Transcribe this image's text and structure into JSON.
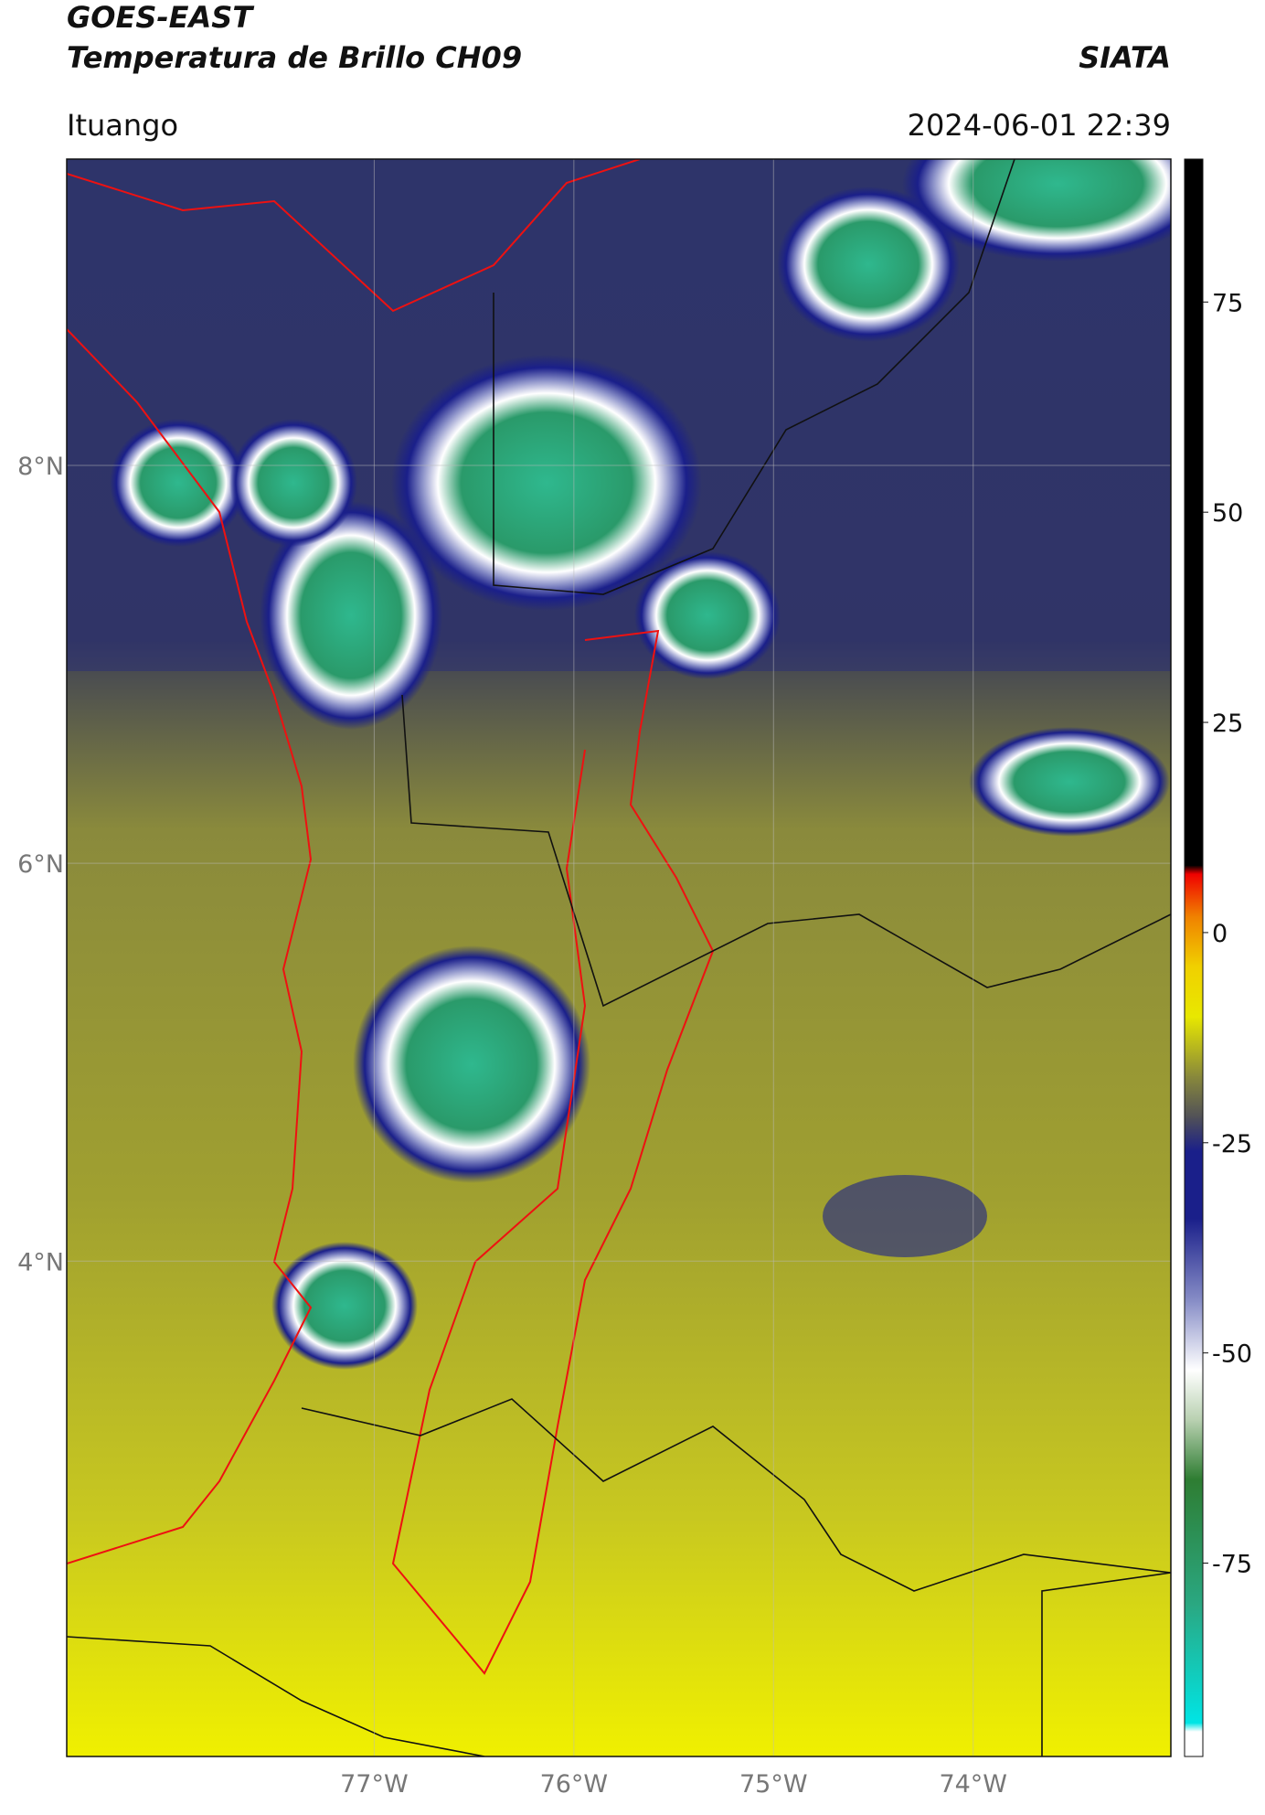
{
  "header": {
    "title": "GOES-EAST",
    "subtitle": "Temperatura de Brillo CH09",
    "source": "SIATA",
    "location": "Ituango",
    "datetime": "2024-06-01 22:39"
  },
  "map": {
    "lon_range": [
      -78.54,
      -73.01
    ],
    "lat_range": [
      1.51,
      9.54
    ],
    "lon_ticks": [
      {
        "value": -77,
        "label": "77°W"
      },
      {
        "value": -76,
        "label": "76°W"
      },
      {
        "value": -75,
        "label": "75°W"
      },
      {
        "value": -74,
        "label": "74°W"
      }
    ],
    "lat_ticks": [
      {
        "value": 8,
        "label": "8°N"
      },
      {
        "value": 6,
        "label": "6°N"
      },
      {
        "value": 4,
        "label": "4°N"
      }
    ]
  },
  "colorbar": {
    "range": [
      -98,
      92
    ],
    "ticks": [
      75,
      50,
      25,
      0,
      -25,
      -50,
      -75
    ],
    "stops": [
      {
        "value": -98,
        "color": "#ffffff"
      },
      {
        "value": -95,
        "color": "#ffffff"
      },
      {
        "value": -94,
        "color": "#00e5e5"
      },
      {
        "value": -80,
        "color": "#2aa882"
      },
      {
        "value": -65,
        "color": "#2e7d32"
      },
      {
        "value": -58,
        "color": "#b8d0b0"
      },
      {
        "value": -52,
        "color": "#ffffff"
      },
      {
        "value": -44,
        "color": "#8a90c8"
      },
      {
        "value": -34,
        "color": "#1a1f8a"
      },
      {
        "value": -26,
        "color": "#1a1f8a"
      },
      {
        "value": -22,
        "color": "#505058"
      },
      {
        "value": -17,
        "color": "#8a8a3a"
      },
      {
        "value": -10,
        "color": "#e8e800"
      },
      {
        "value": -4,
        "color": "#f0d000"
      },
      {
        "value": 2,
        "color": "#f08000"
      },
      {
        "value": 7,
        "color": "#f00000"
      },
      {
        "value": 8,
        "color": "#000000"
      },
      {
        "value": 92,
        "color": "#000000"
      }
    ]
  }
}
